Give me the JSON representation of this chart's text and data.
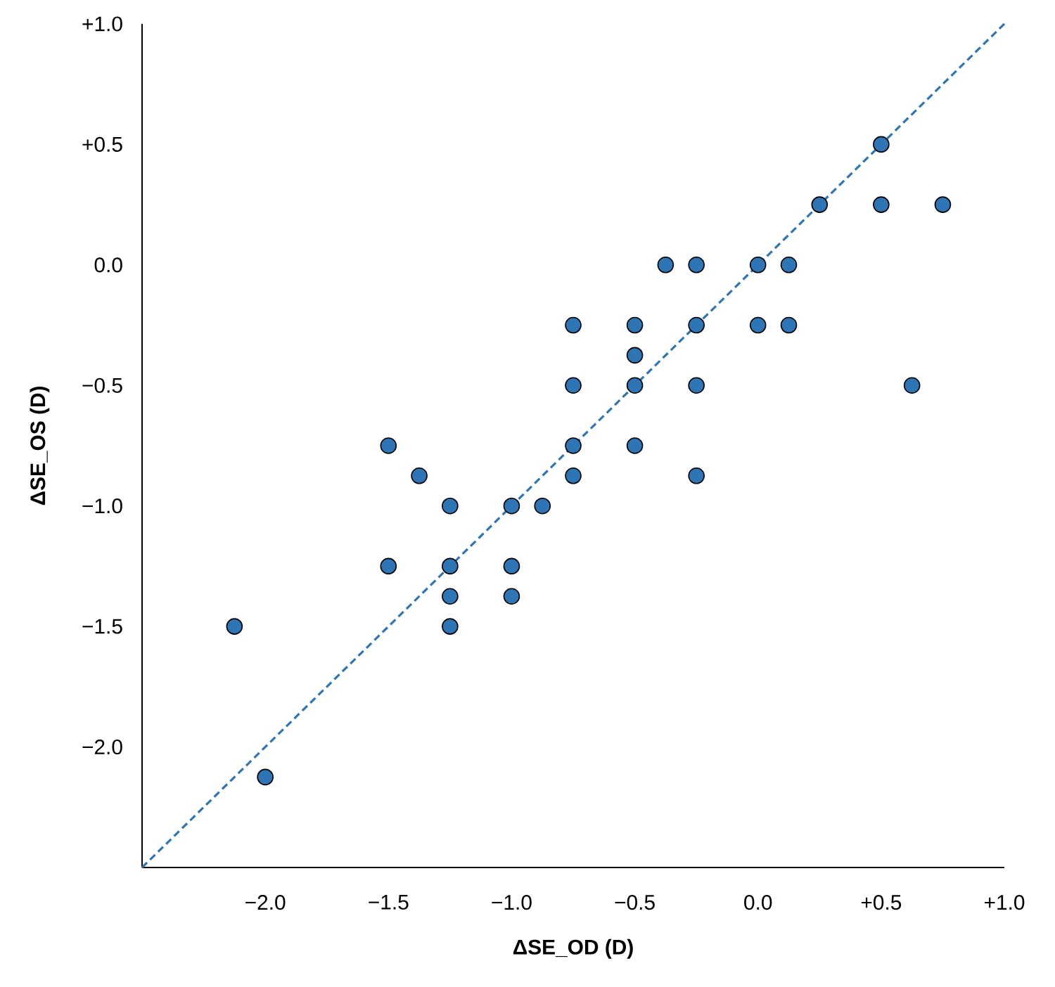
{
  "chart_data": {
    "type": "scatter",
    "xlabel": "ΔSE_OD (D)",
    "ylabel": "ΔSE_OS (D)",
    "xlim": [
      -2.5,
      1.0
    ],
    "ylim": [
      -2.5,
      1.0
    ],
    "xticks": [
      {
        "value": -2.0,
        "label": "−2.0"
      },
      {
        "value": -1.5,
        "label": "−1.5"
      },
      {
        "value": -1.0,
        "label": "−1.0"
      },
      {
        "value": -0.5,
        "label": "−0.5"
      },
      {
        "value": 0.0,
        "label": "0.0"
      },
      {
        "value": 0.5,
        "label": "+0.5"
      },
      {
        "value": 1.0,
        "label": "+1.0"
      }
    ],
    "yticks": [
      {
        "value": -2.0,
        "label": "−2.0"
      },
      {
        "value": -1.5,
        "label": "−1.5"
      },
      {
        "value": -1.0,
        "label": "−1.0"
      },
      {
        "value": -0.5,
        "label": "−0.5"
      },
      {
        "value": 0.0,
        "label": "0.0"
      },
      {
        "value": 0.5,
        "label": "+0.5"
      },
      {
        "value": 1.0,
        "label": "+1.0"
      }
    ],
    "grid": false,
    "series": [
      {
        "type": "scatter",
        "color": "#2e75b6",
        "marker": "circle",
        "x": [
          0.5,
          0.25,
          0.5,
          0.75,
          -0.375,
          -0.25,
          0,
          0.125,
          0,
          0.125,
          -0.75,
          -0.5,
          -0.25,
          -0.5,
          -0.75,
          -0.5,
          -0.25,
          0.625,
          -1.5,
          -0.75,
          -0.5,
          -1.375,
          -0.75,
          -0.25,
          -1.25,
          -1.0,
          -0.875,
          -1.5,
          -1.25,
          -1.0,
          -1.25,
          -1.0,
          -1.25,
          -2.125,
          -2.0
        ],
        "values": [
          0.5,
          0.25,
          0.25,
          0.25,
          0,
          0,
          0,
          0,
          -0.25,
          -0.25,
          -0.25,
          -0.25,
          -0.25,
          -0.375,
          -0.5,
          -0.5,
          -0.5,
          -0.5,
          -0.75,
          -0.75,
          -0.75,
          -0.875,
          -0.875,
          -0.875,
          -1.0,
          -1.0,
          -1.0,
          -1.25,
          -1.25,
          -1.25,
          -1.375,
          -1.375,
          -1.5,
          -1.5,
          -2.125
        ]
      },
      {
        "type": "line",
        "color": "#2e75b6",
        "line_style": "dashed",
        "marker": "none",
        "x": [
          -2.5,
          1.0
        ],
        "values": [
          -2.5,
          1.0
        ]
      }
    ]
  }
}
